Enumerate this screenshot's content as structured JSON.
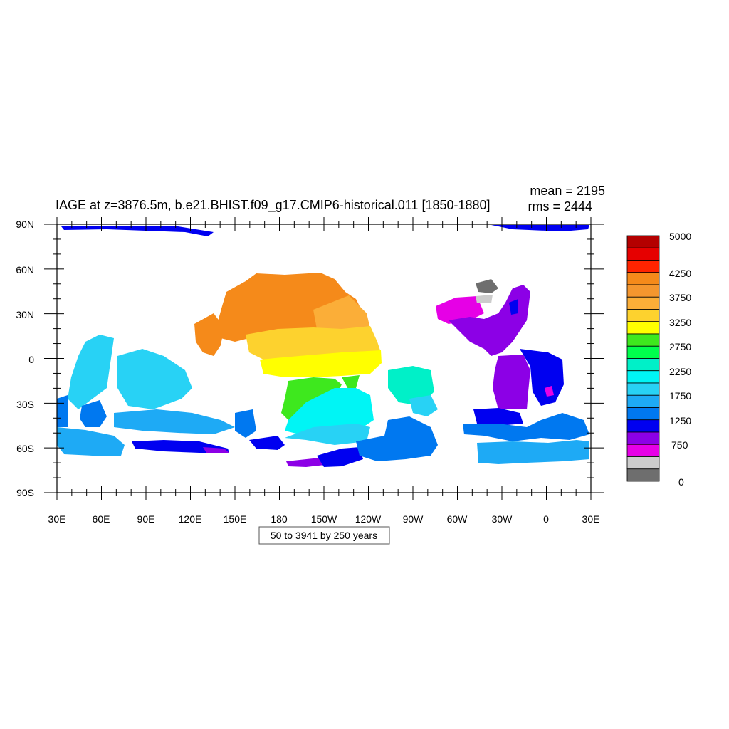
{
  "title": "IAGE at z=3876.5m, b.e21.BHIST.f09_g17.CMIP6-historical.011 [1850-1880]",
  "stats": {
    "mean": "mean = 2195",
    "rms": "rms = 2444"
  },
  "axes": {
    "lat_labels": [
      "90N",
      "60N",
      "30N",
      "0",
      "30S",
      "60S",
      "90S"
    ],
    "lon_labels": [
      "30E",
      "60E",
      "90E",
      "120E",
      "150E",
      "180",
      "150W",
      "120W",
      "90W",
      "60W",
      "30W",
      "0",
      "30E"
    ]
  },
  "contour_info": "50 to 3941 by 250 years",
  "colorbar": {
    "labels": [
      "5000",
      "4250",
      "3750",
      "3250",
      "2750",
      "2250",
      "1750",
      "1250",
      "750",
      "0"
    ],
    "colors": [
      "#b40000",
      "#e60000",
      "#ff2400",
      "#f58a1a",
      "#f4962e",
      "#fbae38",
      "#fdd22e",
      "#ffff00",
      "#3ee81e",
      "#00ff4c",
      "#00f0c8",
      "#00f5f5",
      "#28d2f5",
      "#1eaaf5",
      "#0078f0",
      "#0000f0",
      "#8c00e6",
      "#e600e6",
      "#cccccc",
      "#6e6e6e"
    ]
  },
  "regions": {
    "arctic": "#0000f0",
    "north_pacific": "#f58a1a",
    "pacific_mid": "#fdd22e",
    "equatorial_pacific": "#ffff00",
    "south_pacific_green": "#3ee81e",
    "south_pacific_cyan": "#00f5f5",
    "north_atlantic": "#8c00e6",
    "labrador": "#e600e6",
    "southern_ocean": "#0078f0",
    "indian": "#28d2f5"
  }
}
